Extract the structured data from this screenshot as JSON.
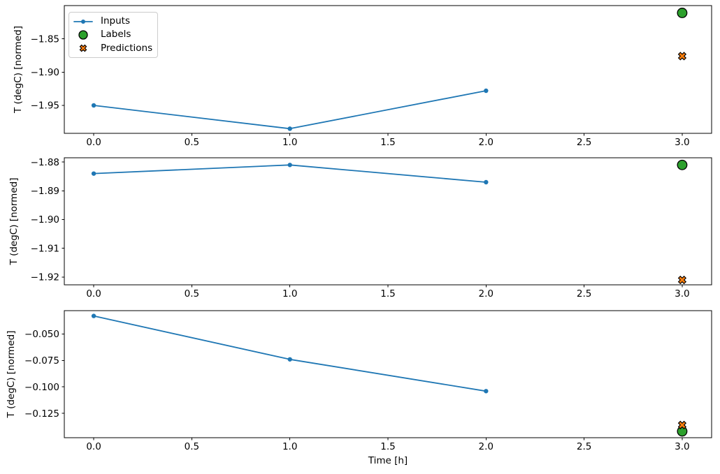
{
  "figure": {
    "background": "#ffffff",
    "n_subplots": 3
  },
  "colors": {
    "inputs": "#1f77b4",
    "labels": "#2ca02c",
    "predictions": "#ff7f0e",
    "marker_edge": "#000000",
    "spine": "#000000"
  },
  "legend": {
    "position": "upper left",
    "items": [
      {
        "label": "Inputs",
        "marker": "line-with-dot",
        "color": "#1f77b4"
      },
      {
        "label": "Labels",
        "marker": "filled-circle",
        "color": "#2ca02c"
      },
      {
        "label": "Predictions",
        "marker": "filled-x",
        "color": "#ff7f0e"
      }
    ]
  },
  "chart_data": [
    {
      "type": "line",
      "title": "",
      "xlabel": "",
      "ylabel": "T (degC) [normed]",
      "xlim": [
        -0.15,
        3.15
      ],
      "ylim": [
        -1.992,
        -1.8
      ],
      "xticks": [
        0,
        0.5,
        1,
        1.5,
        2,
        2.5,
        3
      ],
      "xticklabels": [
        "0.0",
        "0.5",
        "1.0",
        "1.5",
        "2.0",
        "2.5",
        "3.0"
      ],
      "yticks": [
        -1.85,
        -1.9,
        -1.95
      ],
      "yticklabels": [
        "−1.85",
        "−1.90",
        "−1.95"
      ],
      "grid": false,
      "series": [
        {
          "name": "Inputs",
          "kind": "line",
          "marker": "dot",
          "x": [
            0,
            1,
            2
          ],
          "y": [
            -1.95,
            -1.985,
            -1.928
          ]
        },
        {
          "name": "Labels",
          "kind": "scatter",
          "marker": "circle",
          "x": [
            3
          ],
          "y": [
            -1.811
          ]
        },
        {
          "name": "Predictions",
          "kind": "scatter",
          "marker": "X",
          "x": [
            3
          ],
          "y": [
            -1.876
          ]
        }
      ]
    },
    {
      "type": "line",
      "title": "",
      "xlabel": "",
      "ylabel": "T (degC) [normed]",
      "xlim": [
        -0.15,
        3.15
      ],
      "ylim": [
        -1.9227,
        -1.8785
      ],
      "xticks": [
        0,
        0.5,
        1,
        1.5,
        2,
        2.5,
        3
      ],
      "xticklabels": [
        "0.0",
        "0.5",
        "1.0",
        "1.5",
        "2.0",
        "2.5",
        "3.0"
      ],
      "yticks": [
        -1.88,
        -1.89,
        -1.9,
        -1.91,
        -1.92
      ],
      "yticklabels": [
        "−1.88",
        "−1.89",
        "−1.90",
        "−1.91",
        "−1.92"
      ],
      "grid": false,
      "series": [
        {
          "name": "Inputs",
          "kind": "line",
          "marker": "dot",
          "x": [
            0,
            1,
            2
          ],
          "y": [
            -1.884,
            -1.881,
            -1.887
          ]
        },
        {
          "name": "Labels",
          "kind": "scatter",
          "marker": "circle",
          "x": [
            3
          ],
          "y": [
            -1.881
          ]
        },
        {
          "name": "Predictions",
          "kind": "scatter",
          "marker": "X",
          "x": [
            3
          ],
          "y": [
            -1.921
          ]
        }
      ]
    },
    {
      "type": "line",
      "title": "",
      "xlabel": "Time [h]",
      "ylabel": "T (degC) [normed]",
      "xlim": [
        -0.15,
        3.15
      ],
      "ylim": [
        -0.148,
        -0.028
      ],
      "xticks": [
        0,
        0.5,
        1,
        1.5,
        2,
        2.5,
        3
      ],
      "xticklabels": [
        "0.0",
        "0.5",
        "1.0",
        "1.5",
        "2.0",
        "2.5",
        "3.0"
      ],
      "yticks": [
        -0.05,
        -0.075,
        -0.1,
        -0.125
      ],
      "yticklabels": [
        "−0.050",
        "−0.075",
        "−0.100",
        "−0.125"
      ],
      "grid": false,
      "series": [
        {
          "name": "Inputs",
          "kind": "line",
          "marker": "dot",
          "x": [
            0,
            1,
            2
          ],
          "y": [
            -0.033,
            -0.074,
            -0.104
          ]
        },
        {
          "name": "Labels",
          "kind": "scatter",
          "marker": "circle",
          "x": [
            3
          ],
          "y": [
            -0.142
          ]
        },
        {
          "name": "Predictions",
          "kind": "scatter",
          "marker": "X",
          "x": [
            3
          ],
          "y": [
            -0.136
          ]
        }
      ]
    }
  ]
}
